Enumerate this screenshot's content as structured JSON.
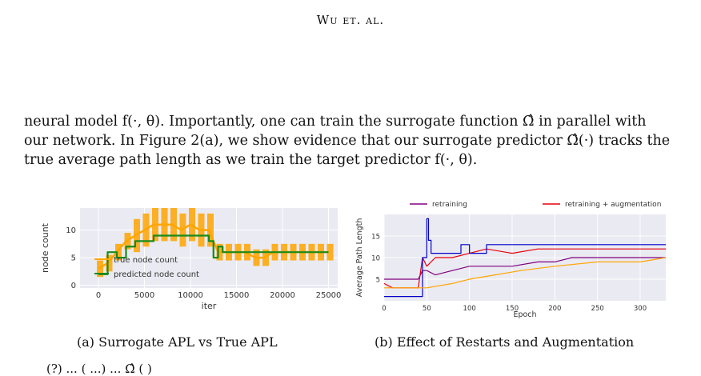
{
  "header": "Wu et. al.",
  "paragraph": [
    "neural model f(·, θ). Importantly, one can train the surrogate function Ω̂ in parallel with",
    "our network. In Figure 2(a), we show evidence that our surrogate predictor Ω̂(·) tracks the",
    "true average path length as we train the target predictor f(·, θ)."
  ],
  "captions": {
    "a": "(a) Surrogate APL vs True APL",
    "b": "(b) Effect of Restarts and Augmentation"
  },
  "bottom_fragment": "(?)                                        ...   ( ...)          ...   Ω̂ (   )",
  "chart_data": [
    {
      "type": "line",
      "xlabel": "iter",
      "ylabel": "node count",
      "xlim": [
        -2000,
        26000
      ],
      "ylim": [
        -0.5,
        14
      ],
      "xticks": [
        0,
        5000,
        10000,
        15000,
        20000,
        25000
      ],
      "yticks": [
        0,
        5,
        10
      ],
      "grid": true,
      "legend_position": "left",
      "colors": {
        "true": "#ffa500",
        "predicted": "#1a8a1a"
      },
      "series": [
        {
          "name": "true node count",
          "x": [
            0,
            1000,
            2000,
            3000,
            4000,
            5000,
            6000,
            7000,
            8000,
            9000,
            10000,
            11000,
            12000,
            13000,
            14000,
            15000,
            16000,
            17000,
            18000,
            19000,
            20000,
            21000,
            22000,
            23000,
            24000,
            25000
          ],
          "y": [
            3,
            4,
            6,
            8,
            9,
            10,
            11,
            11,
            11,
            10,
            11,
            10,
            10,
            6,
            6,
            6,
            6,
            5,
            5,
            6,
            6,
            6,
            6,
            6,
            6,
            6
          ]
        },
        {
          "name": "predicted node count",
          "x": [
            0,
            500,
            1000,
            1500,
            2000,
            2500,
            3000,
            3500,
            4000,
            5000,
            6000,
            7000,
            8000,
            9000,
            10000,
            11000,
            12000,
            12500,
            13000,
            13500,
            14000,
            15000,
            16000,
            17000,
            18000,
            19000,
            20000,
            21000,
            22000,
            23000,
            24000,
            25000
          ],
          "y": [
            2,
            2,
            6,
            6,
            5,
            5,
            7,
            7,
            8,
            8,
            9,
            9,
            9,
            9,
            9,
            9,
            8,
            5,
            7,
            6,
            6,
            6,
            6,
            6,
            6,
            6,
            6,
            6,
            6,
            6,
            6,
            6
          ]
        }
      ]
    },
    {
      "type": "line",
      "xlabel": "Epoch",
      "ylabel": "Average Path Length",
      "xlim": [
        0,
        330
      ],
      "ylim": [
        0,
        20
      ],
      "xticks": [
        0,
        50,
        100,
        150,
        200,
        250,
        300
      ],
      "yticks": [
        5,
        10,
        15
      ],
      "grid": true,
      "legend_position": "top",
      "series": [
        {
          "name": "retraining",
          "color": "#800080",
          "x": [
            0,
            20,
            40,
            45,
            50,
            60,
            80,
            100,
            120,
            150,
            180,
            200,
            220,
            250,
            280,
            300,
            330
          ],
          "y": [
            5,
            5,
            5,
            7,
            7,
            6,
            7,
            8,
            8,
            8,
            9,
            9,
            10,
            10,
            10,
            10,
            10
          ]
        },
        {
          "name": "retraining + augmentation",
          "color": "#e8000b",
          "x": [
            0,
            10,
            40,
            45,
            50,
            60,
            80,
            100,
            120,
            150,
            180,
            200,
            220,
            250,
            300,
            330
          ],
          "y": [
            4,
            3,
            3,
            10,
            8,
            10,
            10,
            11,
            12,
            11,
            12,
            12,
            12,
            12,
            12,
            12
          ]
        },
        {
          "name": "",
          "color": "#0000cc",
          "x": [
            0,
            40,
            45,
            50,
            52,
            55,
            60,
            70,
            80,
            90,
            100,
            120,
            150,
            200,
            250,
            300,
            330
          ],
          "y": [
            1,
            1,
            10,
            19,
            14,
            11,
            11,
            11,
            11,
            13,
            11,
            13,
            13,
            13,
            13,
            13,
            13
          ]
        },
        {
          "name": "",
          "color": "#ffa500",
          "x": [
            0,
            30,
            50,
            80,
            100,
            130,
            160,
            200,
            250,
            300,
            330
          ],
          "y": [
            3,
            3,
            3,
            4,
            5,
            6,
            7,
            8,
            9,
            9,
            10
          ]
        }
      ]
    }
  ]
}
